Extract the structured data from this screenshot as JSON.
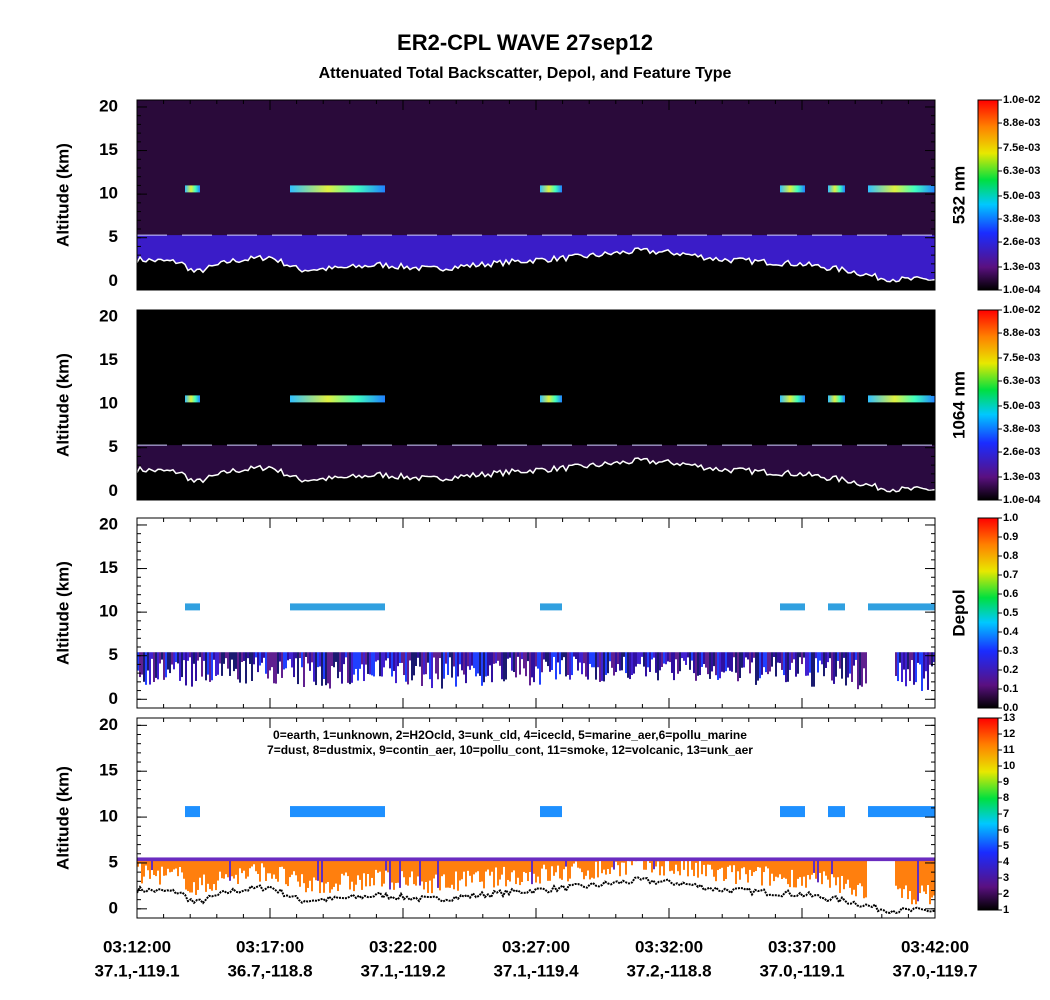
{
  "chart_data": [
    {
      "type": "curtain",
      "title": "ER2-CPL WAVE 27sep12",
      "subtitle": "Attenuated Total Backscatter, Depol, and Feature Type",
      "ylabel": "Altitude (km)",
      "ylim": [
        -1,
        20.8
      ],
      "yticks": [
        0,
        5,
        10,
        15,
        20
      ],
      "colorbar_label": "532 nm",
      "clim": [
        0.0001,
        0.01
      ],
      "colorbar_ticks": [
        {
          "value": 0.0001,
          "label": "1.0e-04"
        },
        {
          "value": 0.0013,
          "label": "1.3e-03"
        },
        {
          "value": 0.0026,
          "label": "2.6e-03"
        },
        {
          "value": 0.0038,
          "label": "3.8e-03"
        },
        {
          "value": 0.005,
          "label": "5.0e-03"
        },
        {
          "value": 0.0063,
          "label": "6.3e-03"
        },
        {
          "value": 0.0075,
          "label": "7.5e-03"
        },
        {
          "value": 0.0088,
          "label": "8.8e-03"
        },
        {
          "value": 0.01,
          "label": "1.0e-02"
        }
      ]
    },
    {
      "type": "curtain",
      "ylabel": "Altitude (km)",
      "ylim": [
        -1,
        20.8
      ],
      "yticks": [
        0,
        5,
        10,
        15,
        20
      ],
      "colorbar_label": "1064 nm",
      "clim": [
        0.0001,
        0.01
      ],
      "colorbar_ticks": [
        {
          "value": 0.0001,
          "label": "1.0e-04"
        },
        {
          "value": 0.0013,
          "label": "1.3e-03"
        },
        {
          "value": 0.0026,
          "label": "2.6e-03"
        },
        {
          "value": 0.0038,
          "label": "3.8e-03"
        },
        {
          "value": 0.005,
          "label": "5.0e-03"
        },
        {
          "value": 0.0063,
          "label": "6.3e-03"
        },
        {
          "value": 0.0075,
          "label": "7.5e-03"
        },
        {
          "value": 0.0088,
          "label": "8.8e-03"
        },
        {
          "value": 0.01,
          "label": "1.0e-02"
        }
      ]
    },
    {
      "type": "depol",
      "ylabel": "Altitude (km)",
      "ylim": [
        -1,
        20.8
      ],
      "yticks": [
        0,
        5,
        10,
        15,
        20
      ],
      "colorbar_label": "Depol",
      "clim": [
        0,
        1
      ],
      "colorbar_ticks": [
        {
          "value": 0,
          "label": "0.0"
        },
        0.1,
        0.2,
        0.3,
        0.4,
        0.5,
        0.6,
        0.7,
        0.8,
        0.9,
        {
          "value": 1,
          "label": "1.0"
        }
      ]
    },
    {
      "type": "feature",
      "ylabel": "Altitude (km)",
      "ylim": [
        -1,
        20.8
      ],
      "yticks": [
        0,
        5,
        10,
        15,
        20
      ],
      "legend_lines": [
        "0=earth, 1=unknown, 2=H2Ocld, 3=unk_cld, 4=icecld, 5=marine_aer,6=pollu_marine",
        "7=dust, 8=dustmix, 9=contin_aer, 10=pollu_cont, 11=smoke, 12=volcanic, 13=unk_aer"
      ],
      "clim": [
        1,
        13
      ],
      "colorbar_ticks": [
        1,
        2,
        3,
        4,
        5,
        6,
        7,
        8,
        9,
        10,
        11,
        12,
        13
      ],
      "categories": [
        "03:12:00",
        "03:17:00",
        "03:22:00",
        "03:27:00",
        "03:32:00",
        "03:37:00",
        "03:42:00"
      ],
      "locations": [
        "37.1,-119.1",
        "36.7,-118.8",
        "37.1,-119.2",
        "37.1,-119.4",
        "37.2,-118.8",
        "37.0,-119.1",
        "37.0,-119.7"
      ]
    }
  ]
}
